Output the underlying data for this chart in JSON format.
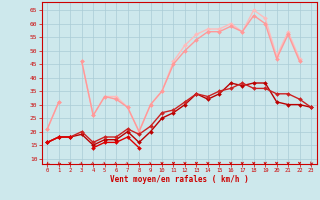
{
  "x": [
    0,
    1,
    2,
    3,
    4,
    5,
    6,
    7,
    8,
    9,
    10,
    11,
    12,
    13,
    14,
    15,
    16,
    17,
    18,
    19,
    20,
    21,
    22,
    23
  ],
  "line1": [
    16,
    18,
    18,
    null,
    14,
    16,
    16,
    18,
    14,
    null,
    null,
    null,
    null,
    null,
    null,
    null,
    null,
    null,
    null,
    null,
    null,
    null,
    null,
    null
  ],
  "line2": [
    16,
    18,
    18,
    19,
    15,
    17,
    17,
    20,
    16,
    20,
    25,
    27,
    30,
    34,
    32,
    34,
    38,
    37,
    38,
    38,
    31,
    30,
    30,
    29
  ],
  "line3": [
    16,
    18,
    18,
    20,
    16,
    18,
    18,
    21,
    19,
    22,
    27,
    28,
    31,
    34,
    33,
    35,
    36,
    38,
    36,
    36,
    34,
    34,
    32,
    29
  ],
  "line4": [
    21,
    31,
    null,
    46,
    26,
    33,
    33,
    29,
    20,
    30,
    35,
    46,
    52,
    56,
    58,
    58,
    60,
    57,
    65,
    62,
    48,
    57,
    47,
    null
  ],
  "line5": [
    21,
    31,
    null,
    46,
    26,
    33,
    32,
    29,
    20,
    30,
    35,
    45,
    50,
    54,
    57,
    57,
    59,
    57,
    63,
    60,
    47,
    56,
    46,
    null
  ],
  "bg_color": "#cde8ec",
  "grid_color": "#aaccd6",
  "line1_color": "#dd0000",
  "line2_color": "#bb0000",
  "line3_color": "#cc2222",
  "line4_color": "#ffbbbb",
  "line5_color": "#ff9999",
  "xlabel": "Vent moyen/en rafales ( km/h )",
  "ylim": [
    8,
    68
  ],
  "yticks": [
    10,
    15,
    20,
    25,
    30,
    35,
    40,
    45,
    50,
    55,
    60,
    65
  ],
  "xlim": [
    -0.5,
    23.5
  ],
  "arrow_angles": [
    -45,
    -30,
    10,
    45,
    45,
    50,
    50,
    50,
    50,
    50,
    0,
    0,
    0,
    0,
    0,
    0,
    0,
    0,
    0,
    0,
    0,
    0,
    0,
    -20
  ]
}
